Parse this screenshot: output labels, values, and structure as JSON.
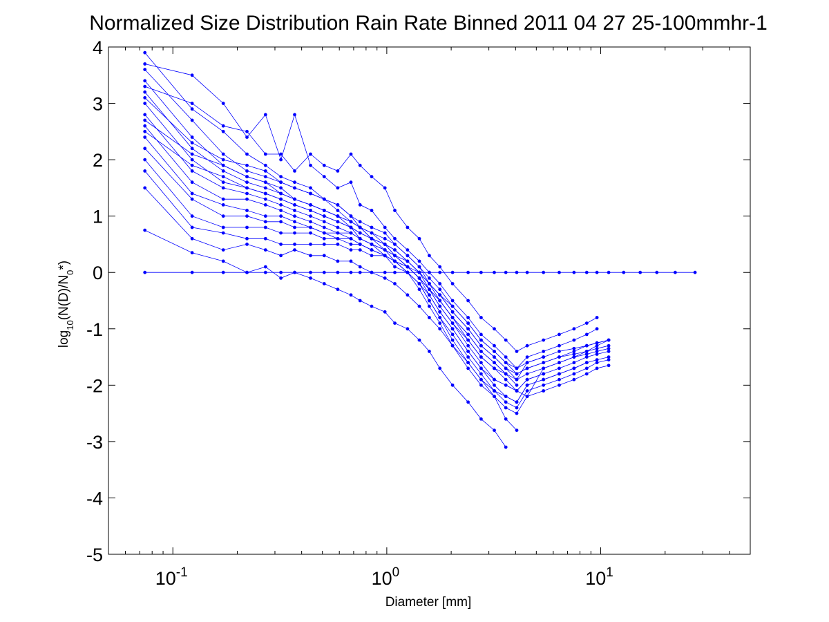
{
  "chart_data": {
    "type": "line",
    "title": "Normalized Size Distribution Rain Rate Binned 2011 04 27 25-100mmhr-1",
    "xlabel": "Diameter [mm]",
    "ylabel": {
      "prefix": "log",
      "sub1": "10",
      "mid": "(N(D)/N",
      "sub2": "0",
      "suffix": "*)"
    },
    "x_scale": "log",
    "xlim": [
      0.05,
      50
    ],
    "ylim": [
      -5,
      4
    ],
    "x_tick_labels": [
      {
        "value": 0.1,
        "base": "10",
        "exp": "-1"
      },
      {
        "value": 1,
        "base": "10",
        "exp": "0"
      },
      {
        "value": 10,
        "base": "10",
        "exp": "1"
      }
    ],
    "y_ticks": [
      -5,
      -4,
      -3,
      -2,
      -1,
      0,
      1,
      2,
      3,
      4
    ],
    "y_tick_labels": [
      "-5",
      "-4",
      "-3",
      "-2",
      "-1",
      "0",
      "1",
      "2",
      "3",
      "4"
    ],
    "color": "#0000ff",
    "grid": false,
    "diameter_bins": [
      0.074,
      0.123,
      0.172,
      0.222,
      0.271,
      0.32,
      0.371,
      0.44,
      0.51,
      0.59,
      0.68,
      0.75,
      0.85,
      0.98,
      1.09,
      1.25,
      1.42,
      1.58,
      1.77,
      2.03,
      2.4,
      2.76,
      3.18,
      3.6,
      4.05,
      4.53,
      5.4,
      6.4,
      7.5,
      8.6,
      9.6,
      10.9,
      12.8,
      15.3,
      18.3,
      22.3,
      27.6
    ],
    "reference_series": {
      "name": "",
      "x": [
        0.074,
        0.123,
        0.172,
        0.222,
        0.271,
        0.32,
        0.371,
        0.44,
        0.51,
        0.59,
        0.68,
        0.75,
        0.85,
        0.98,
        1.09,
        1.25,
        1.42,
        1.58,
        1.77,
        2.03,
        2.4,
        2.76,
        3.18,
        3.6,
        4.05,
        4.53,
        5.4,
        6.4,
        7.5,
        8.6,
        9.6,
        10.9,
        12.8,
        15.3,
        18.3,
        22.3,
        27.6
      ],
      "y": [
        0,
        0,
        0,
        0,
        0,
        0,
        0,
        0,
        0,
        0,
        0,
        0,
        0,
        0,
        0,
        0,
        0,
        0,
        0,
        0,
        0,
        0,
        0,
        0,
        0,
        0,
        0,
        0,
        0,
        0,
        0,
        0,
        0,
        0,
        0,
        0,
        0
      ]
    },
    "series": [
      {
        "y": [
          3.9,
          2.9,
          2.5,
          2.1,
          1.9,
          1.7,
          1.6,
          1.5,
          1.3,
          1.2,
          1.0,
          0.8,
          0.6,
          0.4,
          0.3,
          0.1,
          -0.1,
          -0.3,
          -0.5,
          -0.8,
          -1.1,
          -1.4,
          -1.6,
          -1.8,
          -2.0
        ]
      },
      {
        "y": [
          3.6,
          2.7,
          2.1,
          1.8,
          1.7,
          1.6,
          1.5,
          1.4,
          1.3,
          1.1,
          0.9,
          0.8,
          0.7,
          0.5,
          0.4,
          0.2,
          0.0,
          -0.2,
          -0.4,
          -0.7,
          -1.0,
          -1.3,
          -1.5,
          -1.7,
          -1.9,
          -1.6,
          -1.5
        ]
      },
      {
        "y": [
          3.4,
          2.4,
          1.9,
          1.7,
          1.6,
          1.5,
          1.3,
          1.2,
          1.1,
          1.0,
          0.9,
          0.8,
          0.6,
          0.5,
          0.3,
          0.1,
          0.0,
          -0.3,
          -0.5,
          -0.8,
          -1.2,
          -1.5,
          -1.7,
          -1.9,
          -2.1,
          -2.2,
          -1.7,
          -1.6,
          -1.5,
          -1.4,
          -1.3,
          -1.2
        ]
      },
      {
        "y": [
          3.2,
          2.2,
          1.8,
          1.6,
          1.5,
          1.4,
          1.3,
          1.2,
          1.1,
          1.0,
          0.8,
          0.7,
          0.6,
          0.5,
          0.3,
          0.2,
          0.0,
          -0.2,
          -0.4,
          -0.6,
          -0.9,
          -1.2,
          -1.4,
          -1.6,
          -1.8,
          -1.7,
          -1.6,
          -1.5,
          -1.45,
          -1.4,
          -1.35,
          -1.3
        ]
      },
      {
        "y": [
          3.0,
          2.0,
          1.6,
          1.5,
          1.4,
          1.3,
          1.2,
          1.1,
          1.0,
          0.9,
          0.8,
          0.6,
          0.5,
          0.4,
          0.3,
          0.1,
          -0.1,
          -0.3,
          -0.6,
          -0.9,
          -1.3,
          -1.6,
          -1.9,
          -2.0,
          -2.1,
          -1.9,
          -1.8,
          -1.7,
          -1.6,
          -1.5,
          -1.45,
          -1.4
        ]
      },
      {
        "y": [
          2.8,
          1.8,
          1.5,
          1.4,
          1.3,
          1.2,
          1.1,
          1.0,
          0.9,
          0.8,
          0.7,
          0.6,
          0.5,
          0.4,
          0.2,
          0.1,
          -0.1,
          -0.4,
          -0.7,
          -1.0,
          -1.4,
          -1.7,
          -2.0,
          -2.2,
          -2.3,
          -2.0,
          -1.9,
          -1.8,
          -1.7,
          -1.6,
          -1.55,
          -1.5
        ]
      },
      {
        "y": [
          2.6,
          1.6,
          1.3,
          1.3,
          1.2,
          1.1,
          1.0,
          0.9,
          0.8,
          0.7,
          0.7,
          0.6,
          0.5,
          0.3,
          0.2,
          0.0,
          -0.2,
          -0.5,
          -0.8,
          -1.1,
          -1.5,
          -1.8,
          -2.1,
          -2.3,
          -2.4,
          -2.1,
          -2.0,
          -1.9,
          -1.8,
          -1.7,
          -1.6,
          -1.55
        ]
      },
      {
        "y": [
          2.4,
          1.4,
          1.2,
          1.1,
          1.0,
          1.0,
          0.9,
          0.8,
          0.7,
          0.7,
          0.6,
          0.5,
          0.4,
          0.3,
          0.1,
          0.0,
          -0.3,
          -0.6,
          -0.9,
          -1.3,
          -1.7,
          -2.0,
          -2.2,
          -2.4,
          -2.5,
          -2.2,
          -2.1,
          -2.0,
          -1.9,
          -1.8,
          -1.7,
          -1.65
        ]
      },
      {
        "y": [
          2.2,
          1.3,
          1.0,
          1.0,
          0.9,
          0.9,
          0.8,
          0.8,
          0.7,
          0.6,
          0.6,
          0.5,
          0.4,
          0.3,
          0.2,
          0.0,
          -0.2,
          -0.5,
          -0.8,
          -1.2,
          -1.6,
          -1.9,
          -2.1,
          -2.2,
          -2.3,
          -2.0,
          -1.9,
          -1.8,
          -1.7,
          -1.6
        ]
      },
      {
        "y": [
          2.0,
          1.0,
          0.8,
          0.8,
          0.8,
          0.7,
          0.7,
          0.7,
          0.6,
          0.6,
          0.5,
          0.5,
          0.4,
          0.3,
          0.2,
          0.0,
          -0.2,
          -0.4,
          -0.7,
          -1.0,
          -1.4,
          -1.7,
          -1.9,
          -2.0,
          -2.1,
          -1.9,
          -1.8
        ]
      },
      {
        "y": [
          1.8,
          0.8,
          0.7,
          0.6,
          0.6,
          0.5,
          0.5,
          0.5,
          0.5,
          0.5,
          0.4,
          0.4,
          0.3,
          0.3,
          0.2,
          0.1,
          -0.1,
          -0.3,
          -0.6,
          -0.9,
          -1.2,
          -1.5,
          -1.7,
          -1.8
        ]
      },
      {
        "y": [
          1.5,
          0.6,
          0.4,
          0.5,
          0.4,
          0.3,
          0.4,
          0.3,
          0.3,
          0.2,
          0.2,
          0.1,
          0.0,
          -0.1,
          -0.2,
          -0.4,
          -0.6,
          -0.8,
          -1.0,
          -1.3,
          -1.6,
          -1.9,
          -2.2,
          -2.6,
          -2.8
        ]
      },
      {
        "y": [
          0.75,
          0.35,
          0.2,
          0.0,
          0.1,
          -0.1,
          0.0,
          -0.1,
          -0.2,
          -0.3,
          -0.4,
          -0.5,
          -0.6,
          -0.7,
          -0.9,
          -1.0,
          -1.2,
          -1.4,
          -1.7,
          -2.0,
          -2.3,
          -2.6,
          -2.8,
          -3.1
        ]
      },
      {
        "y": [
          3.7,
          3.5,
          3.0,
          2.4,
          2.8,
          2.0,
          2.8,
          1.9,
          1.7,
          1.5,
          1.6,
          1.2,
          1.1,
          0.8,
          0.6,
          0.4,
          0.2,
          0.0,
          -0.2,
          -0.5,
          -0.8,
          -1.1,
          -1.3,
          -1.5,
          -1.7,
          -1.5,
          -1.4,
          -1.3,
          -1.2,
          -1.1,
          -1.0
        ]
      },
      {
        "y": [
          3.3,
          3.0,
          2.6,
          2.5,
          2.1,
          2.1,
          1.8,
          2.1,
          1.9,
          1.8,
          2.1,
          1.9,
          1.7,
          1.5,
          1.1,
          0.8,
          0.6,
          0.3,
          0.1,
          -0.2,
          -0.5,
          -0.8,
          -1.0,
          -1.2,
          -1.4,
          -1.3,
          -1.2,
          -1.1,
          -1.0,
          -0.9,
          -0.8
        ]
      },
      {
        "y": [
          2.5,
          1.9,
          1.7,
          1.5,
          1.4,
          1.3,
          1.2,
          1.1,
          1.0,
          0.9,
          0.8,
          0.7,
          0.6,
          0.5,
          0.4,
          0.2,
          0.0,
          -0.2,
          -0.4,
          -0.7,
          -1.0,
          -1.3,
          -1.5,
          -1.7,
          -1.8,
          -1.7,
          -1.6,
          -1.5,
          -1.4,
          -1.3,
          -1.25,
          -1.2
        ]
      },
      {
        "y": [
          2.7,
          2.1,
          1.9,
          1.7,
          1.6,
          1.4,
          1.3,
          1.2,
          1.1,
          1.0,
          0.9,
          0.8,
          0.7,
          0.6,
          0.5,
          0.3,
          0.1,
          -0.1,
          -0.3,
          -0.6,
          -0.9,
          -1.2,
          -1.4,
          -1.6,
          -1.7,
          -1.6,
          -1.5,
          -1.4,
          -1.35,
          -1.3,
          -1.25,
          -1.2
        ]
      },
      {
        "y": [
          3.1,
          2.3,
          2.0,
          1.9,
          1.8,
          1.6,
          1.5,
          1.4,
          1.3,
          1.2,
          1.0,
          0.9,
          0.8,
          0.7,
          0.5,
          0.3,
          0.1,
          -0.2,
          -0.5,
          -0.8,
          -1.1,
          -1.4,
          -1.6,
          -1.8,
          -1.9,
          -1.8,
          -1.7,
          -1.6,
          -1.5,
          -1.45,
          -1.4,
          -1.35
        ]
      }
    ]
  }
}
